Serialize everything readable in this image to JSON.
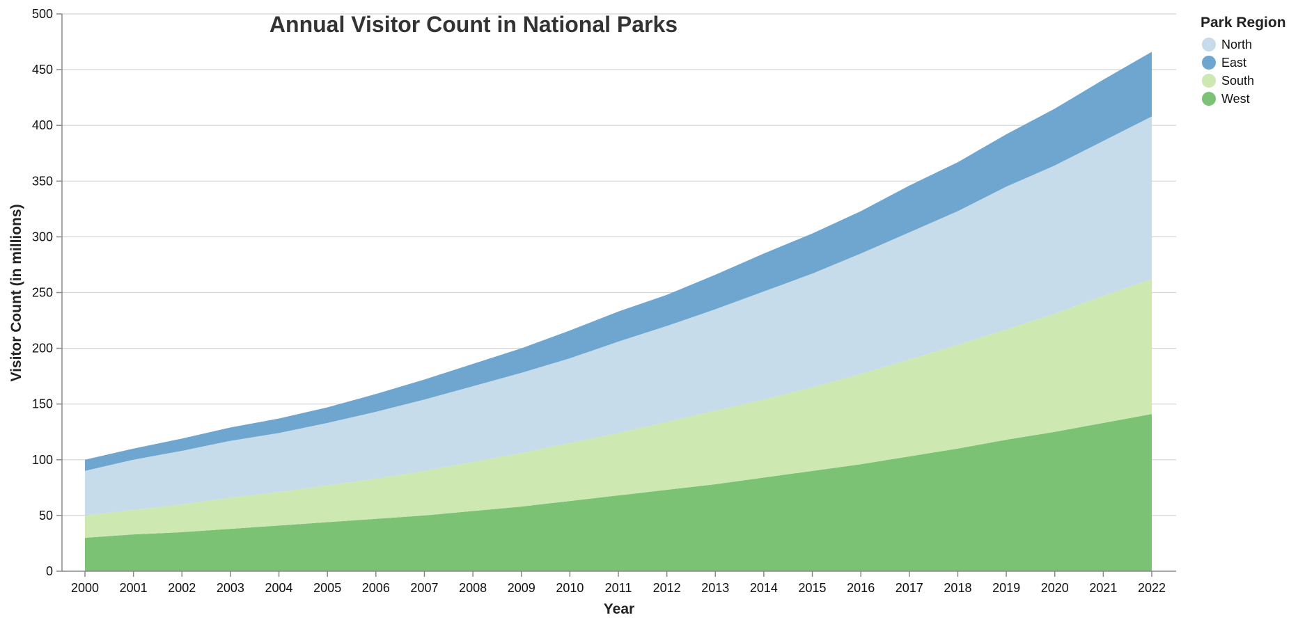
{
  "chart_data": {
    "type": "area",
    "stacked": true,
    "title": "Annual Visitor Count in National Parks",
    "xlabel": "Year",
    "ylabel": "Visitor Count (in millions)",
    "ylim": [
      0,
      500
    ],
    "yticks": [
      "0",
      "50",
      "100",
      "150",
      "200",
      "250",
      "300",
      "350",
      "400",
      "450",
      "500"
    ],
    "grid": true,
    "legend": {
      "title": "Park Region",
      "position": "top-right"
    },
    "x": [
      "2000",
      "2001",
      "2002",
      "2003",
      "2004",
      "2005",
      "2006",
      "2007",
      "2008",
      "2009",
      "2010",
      "2011",
      "2012",
      "2013",
      "2014",
      "2015",
      "2016",
      "2017",
      "2018",
      "2019",
      "2020",
      "2021",
      "2022"
    ],
    "series": [
      {
        "name": "West",
        "color": "#7bc274",
        "values": [
          30,
          33,
          35,
          38,
          41,
          44,
          47,
          50,
          54,
          58,
          63,
          68,
          73,
          78,
          84,
          90,
          96,
          103,
          110,
          118,
          125,
          133,
          141
        ]
      },
      {
        "name": "South",
        "color": "#cde8b0",
        "values": [
          20,
          22,
          25,
          28,
          30,
          33,
          36,
          40,
          44,
          48,
          52,
          56,
          61,
          66,
          70,
          75,
          81,
          87,
          93,
          99,
          106,
          114,
          121
        ]
      },
      {
        "name": "North",
        "color": "#c6dcea",
        "values": [
          40,
          45,
          48,
          51,
          53,
          56,
          60,
          64,
          68,
          72,
          76,
          82,
          86,
          91,
          97,
          102,
          108,
          114,
          120,
          128,
          133,
          139,
          146
        ]
      },
      {
        "name": "East",
        "color": "#6fa6cf",
        "values": [
          10,
          10,
          11,
          12,
          13,
          14,
          16,
          18,
          20,
          22,
          25,
          27,
          28,
          31,
          34,
          36,
          38,
          42,
          44,
          47,
          51,
          55,
          58
        ]
      }
    ],
    "legend_order": [
      "North",
      "East",
      "South",
      "West"
    ]
  }
}
